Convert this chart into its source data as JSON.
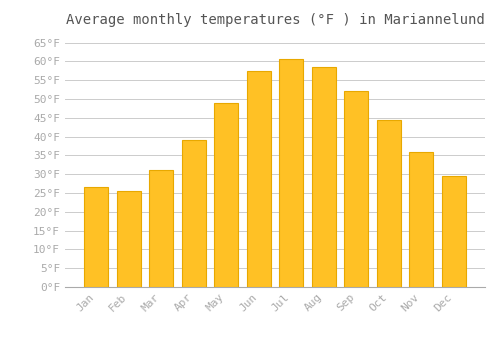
{
  "title": "Average monthly temperatures (°F ) in Mariannelund",
  "months": [
    "Jan",
    "Feb",
    "Mar",
    "Apr",
    "May",
    "Jun",
    "Jul",
    "Aug",
    "Sep",
    "Oct",
    "Nov",
    "Dec"
  ],
  "values": [
    26.5,
    25.5,
    31,
    39,
    49,
    57.5,
    60.5,
    58.5,
    52,
    44.5,
    36,
    29.5
  ],
  "bar_color": "#FFC125",
  "bar_edge_color": "#E8A800",
  "background_color": "#FFFFFF",
  "grid_color": "#CCCCCC",
  "text_color": "#AAAAAA",
  "ylim": [
    0,
    67
  ],
  "yticks": [
    0,
    5,
    10,
    15,
    20,
    25,
    30,
    35,
    40,
    45,
    50,
    55,
    60,
    65
  ],
  "title_fontsize": 10,
  "tick_fontsize": 8,
  "bar_width": 0.75
}
